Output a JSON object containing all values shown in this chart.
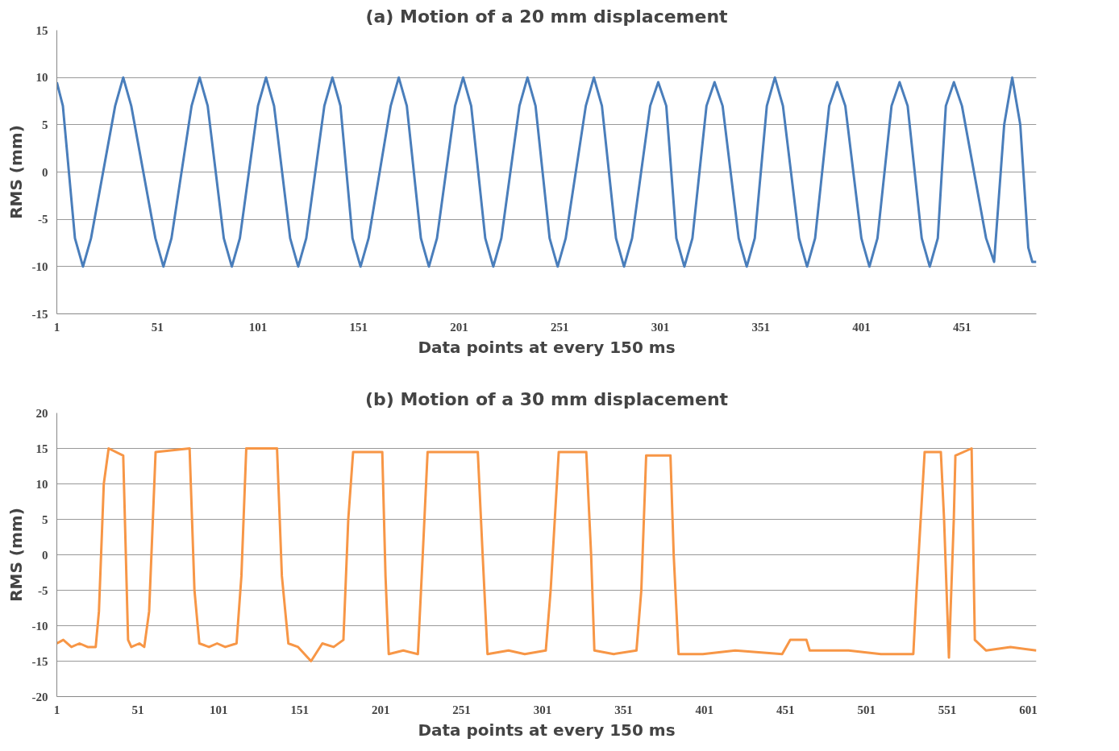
{
  "chart_data": [
    {
      "type": "line",
      "title": "(a) Motion of a 20 mm displacement",
      "xlabel": "Data points at every 150 ms",
      "ylabel": "RMS (mm)",
      "xlim": [
        1,
        488
      ],
      "ylim": [
        -15,
        15
      ],
      "xticks": [
        1,
        51,
        101,
        151,
        201,
        251,
        301,
        351,
        401,
        451
      ],
      "yticks": [
        -15,
        -10,
        -5,
        0,
        5,
        10,
        15
      ],
      "grid": "y",
      "line_style": "solid",
      "series": [
        {
          "color": "#4a7ebb",
          "x": [
            1,
            4,
            10,
            14,
            18,
            30,
            34,
            38,
            50,
            54,
            58,
            68,
            72,
            76,
            84,
            88,
            92,
            101,
            105,
            109,
            117,
            121,
            125,
            134,
            138,
            142,
            148,
            152,
            156,
            167,
            171,
            175,
            182,
            186,
            190,
            199,
            203,
            207,
            214,
            218,
            222,
            231,
            235,
            239,
            246,
            250,
            254,
            264,
            268,
            272,
            279,
            283,
            287,
            296,
            300,
            304,
            309,
            313,
            317,
            324,
            328,
            332,
            340,
            344,
            348,
            354,
            358,
            362,
            370,
            374,
            378,
            385,
            389,
            393,
            401,
            405,
            409,
            416,
            420,
            424,
            431,
            435,
            439,
            443,
            447,
            451,
            463,
            467,
            472,
            476,
            480,
            484,
            486,
            488
          ],
          "values": [
            9.5,
            7,
            -7,
            -10,
            -7,
            7,
            10,
            7,
            -7,
            -10,
            -7,
            7,
            10,
            7,
            -7,
            -10,
            -7,
            7,
            10,
            7,
            -7,
            -10,
            -7,
            7,
            10,
            7,
            -7,
            -10,
            -7,
            7,
            10,
            7,
            -7,
            -10,
            -7,
            7,
            10,
            7,
            -7,
            -10,
            -7,
            7,
            10,
            7,
            -7,
            -10,
            -7,
            7,
            10,
            7,
            -7,
            -10,
            -7,
            7,
            9.5,
            7,
            -7,
            -10,
            -7,
            7,
            9.5,
            7,
            -7,
            -10,
            -7,
            7,
            10,
            7,
            -7,
            -10,
            -7,
            7,
            9.5,
            7,
            -7,
            -10,
            -7,
            7,
            9.5,
            7,
            -7,
            -10,
            -7,
            7,
            9.5,
            7,
            -7,
            -9.5,
            5,
            10,
            5,
            -8,
            -9.5,
            -9.5
          ]
        }
      ]
    },
    {
      "type": "line",
      "title": "(b) Motion of a 30 mm displacement",
      "xlabel": "Data points at every 150 ms",
      "ylabel": "RMS (mm)",
      "xlim": [
        1,
        606
      ],
      "ylim": [
        -20,
        20
      ],
      "xticks": [
        1,
        51,
        101,
        151,
        201,
        251,
        301,
        351,
        401,
        451,
        501,
        551,
        601
      ],
      "yticks": [
        -20,
        -15,
        -10,
        -5,
        0,
        5,
        10,
        15,
        20
      ],
      "grid": "y",
      "line_style": "solid",
      "series": [
        {
          "color": "#f79646",
          "x": [
            1,
            5,
            10,
            15,
            20,
            25,
            27,
            30,
            33,
            42,
            45,
            47,
            52,
            55,
            58,
            62,
            83,
            86,
            89,
            95,
            100,
            105,
            112,
            115,
            118,
            137,
            140,
            144,
            150,
            158,
            165,
            172,
            178,
            181,
            184,
            202,
            204,
            206,
            215,
            224,
            227,
            230,
            261,
            264,
            267,
            280,
            290,
            303,
            306,
            311,
            328,
            331,
            333,
            345,
            359,
            362,
            365,
            380,
            382,
            385,
            400,
            420,
            449,
            454,
            464,
            466,
            490,
            510,
            530,
            532,
            537,
            547,
            549,
            552,
            555,
            556,
            566,
            568,
            575,
            590,
            606
          ],
          "values": [
            -12.5,
            -12,
            -13,
            -12.5,
            -13,
            -13,
            -8,
            10,
            15,
            14,
            -12,
            -13,
            -12.5,
            -13,
            -8,
            14.5,
            15,
            -5,
            -12.5,
            -13,
            -12.5,
            -13,
            -12.5,
            -3,
            15,
            15,
            -3,
            -12.5,
            -13,
            -15,
            -12.5,
            -13,
            -12,
            5,
            14.5,
            14.5,
            -3,
            -14,
            -13.5,
            -14,
            0,
            14.5,
            14.5,
            0,
            -14,
            -13.5,
            -14,
            -13.5,
            -5,
            14.5,
            14.5,
            0,
            -13.5,
            -14,
            -13.5,
            -5,
            14,
            14,
            0,
            -14,
            -14,
            -13.5,
            -14,
            -12,
            -12,
            -13.5,
            -13.5,
            -14,
            -14,
            -5,
            14.5,
            14.5,
            5,
            -14.5,
            5,
            14,
            15,
            -12,
            -13.5,
            -13,
            -13.5
          ]
        }
      ]
    }
  ]
}
